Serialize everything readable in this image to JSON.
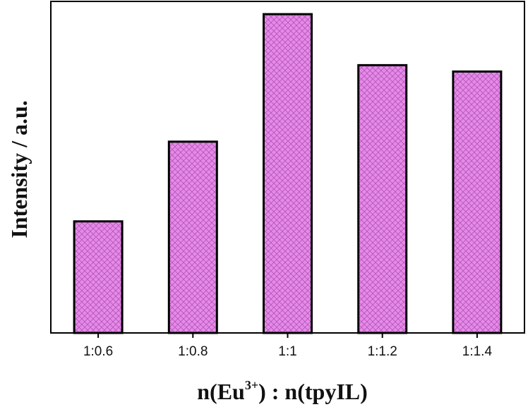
{
  "chart_data": {
    "type": "bar",
    "categories": [
      "1:0.6",
      "1:0.8",
      "1:1",
      "1:1.2",
      "1:1.4"
    ],
    "values": [
      35,
      60,
      100,
      84,
      82
    ],
    "title": "",
    "xlabel_main": "n(Eu",
    "xlabel_sup": "3+",
    "xlabel_tail": ") : n(tpyIL)",
    "ylabel": "Intensity / a.u.",
    "ylim": [
      0,
      104
    ],
    "y_ticks_labeled": false,
    "grid": false,
    "legend": "none",
    "bar_fill": "#e58ae8",
    "bar_pattern": "crosshatch",
    "bar_edge": "#000000"
  }
}
